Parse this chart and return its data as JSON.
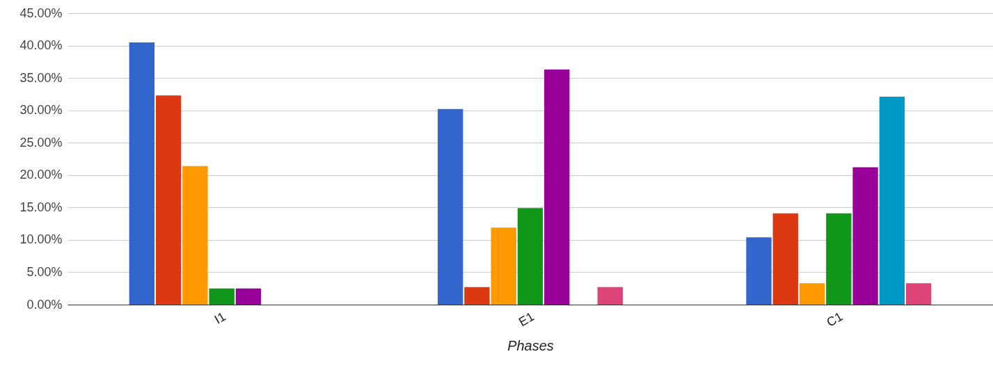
{
  "chart_data": {
    "type": "bar",
    "xlabel": "Phases",
    "categories": [
      "I1",
      "E1",
      "C1"
    ],
    "series": [
      {
        "color": "#3366cc",
        "values": [
          40.5,
          30.2,
          10.4
        ]
      },
      {
        "color": "#dc3912",
        "values": [
          32.3,
          2.7,
          14.1
        ]
      },
      {
        "color": "#ff9900",
        "values": [
          21.4,
          11.9,
          3.3
        ]
      },
      {
        "color": "#109618",
        "values": [
          2.5,
          14.9,
          14.1
        ]
      },
      {
        "color": "#990099",
        "values": [
          2.5,
          36.3,
          21.2
        ]
      },
      {
        "color": "#0099c6",
        "values": [
          null,
          null,
          32.1
        ]
      },
      {
        "color": "#dd4477",
        "values": [
          null,
          2.7,
          3.3
        ]
      }
    ],
    "ylim": [
      0,
      45
    ],
    "yticks": [
      {
        "value": 0,
        "label": "0.00%"
      },
      {
        "value": 5,
        "label": "5.00%"
      },
      {
        "value": 10,
        "label": "10.00%"
      },
      {
        "value": 15,
        "label": "15.00%"
      },
      {
        "value": 20,
        "label": "20.00%"
      },
      {
        "value": 25,
        "label": "25.00%"
      },
      {
        "value": 30,
        "label": "30.00%"
      },
      {
        "value": 35,
        "label": "35.00%"
      },
      {
        "value": 40,
        "label": "40.00%"
      },
      {
        "value": 45,
        "label": "45.00%"
      }
    ],
    "grid": "y",
    "legend": false
  }
}
